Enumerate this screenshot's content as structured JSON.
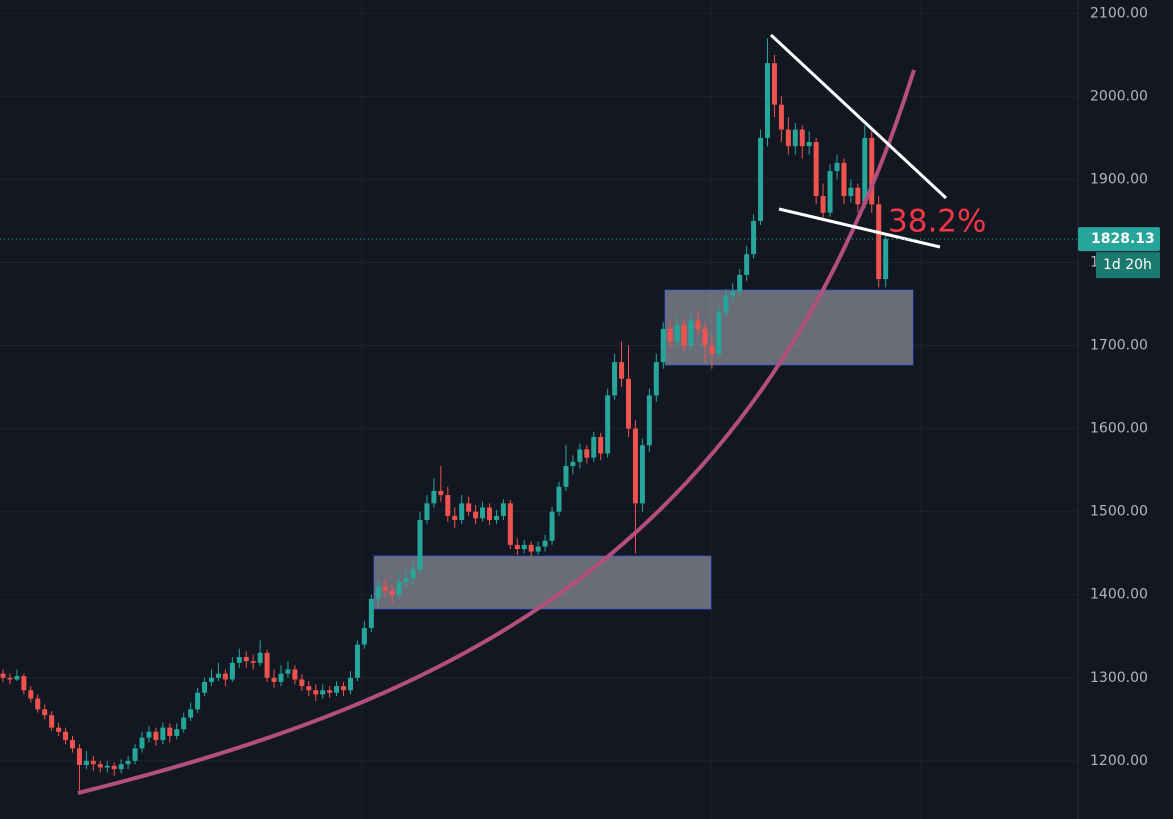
{
  "chart_data": {
    "type": "candlestick",
    "up_color": "#26a69a",
    "down_color": "#ef5350",
    "ylim": [
      1130,
      2116
    ],
    "yticks": [
      {
        "value": 1200,
        "label": "1200.00"
      },
      {
        "value": 1300,
        "label": "1300.00"
      },
      {
        "value": 1400,
        "label": "1400.00"
      },
      {
        "value": 1500,
        "label": "1500.00"
      },
      {
        "value": 1600,
        "label": "1600.00"
      },
      {
        "value": 1700,
        "label": "1700.00"
      },
      {
        "value": 1800,
        "label": "1800.00"
      },
      {
        "value": 1900,
        "label": "1900.00"
      },
      {
        "value": 2000,
        "label": "2000.00"
      },
      {
        "value": 2100,
        "label": "2100.00"
      }
    ],
    "grid": true,
    "last_price": 1828.13,
    "countdown": "1d 20h",
    "annotation": "38.2%",
    "candles": [
      [
        1305,
        1310,
        1295,
        1300
      ],
      [
        1300,
        1305,
        1292,
        1298
      ],
      [
        1298,
        1310,
        1296,
        1302
      ],
      [
        1302,
        1305,
        1280,
        1285
      ],
      [
        1285,
        1290,
        1270,
        1275
      ],
      [
        1275,
        1280,
        1258,
        1262
      ],
      [
        1262,
        1268,
        1250,
        1255
      ],
      [
        1255,
        1260,
        1236,
        1240
      ],
      [
        1240,
        1246,
        1230,
        1235
      ],
      [
        1235,
        1240,
        1220,
        1225
      ],
      [
        1225,
        1230,
        1210,
        1215
      ],
      [
        1215,
        1220,
        1165,
        1195
      ],
      [
        1195,
        1212,
        1190,
        1200
      ],
      [
        1200,
        1206,
        1188,
        1196
      ],
      [
        1196,
        1200,
        1186,
        1192
      ],
      [
        1192,
        1200,
        1186,
        1194
      ],
      [
        1194,
        1198,
        1182,
        1190
      ],
      [
        1190,
        1202,
        1185,
        1196
      ],
      [
        1196,
        1206,
        1190,
        1200
      ],
      [
        1200,
        1220,
        1196,
        1215
      ],
      [
        1215,
        1235,
        1210,
        1228
      ],
      [
        1228,
        1242,
        1222,
        1235
      ],
      [
        1235,
        1240,
        1218,
        1225
      ],
      [
        1225,
        1246,
        1220,
        1240
      ],
      [
        1240,
        1245,
        1222,
        1230
      ],
      [
        1230,
        1245,
        1226,
        1238
      ],
      [
        1238,
        1258,
        1234,
        1252
      ],
      [
        1252,
        1270,
        1248,
        1262
      ],
      [
        1262,
        1288,
        1258,
        1282
      ],
      [
        1282,
        1300,
        1278,
        1295
      ],
      [
        1295,
        1310,
        1290,
        1300
      ],
      [
        1300,
        1318,
        1296,
        1305
      ],
      [
        1305,
        1310,
        1290,
        1298
      ],
      [
        1298,
        1325,
        1295,
        1318
      ],
      [
        1318,
        1335,
        1312,
        1325
      ],
      [
        1325,
        1332,
        1312,
        1320
      ],
      [
        1320,
        1328,
        1310,
        1318
      ],
      [
        1318,
        1345,
        1314,
        1330
      ],
      [
        1330,
        1334,
        1295,
        1300
      ],
      [
        1300,
        1310,
        1288,
        1295
      ],
      [
        1295,
        1315,
        1290,
        1305
      ],
      [
        1305,
        1320,
        1300,
        1310
      ],
      [
        1310,
        1315,
        1292,
        1298
      ],
      [
        1298,
        1304,
        1284,
        1290
      ],
      [
        1290,
        1296,
        1278,
        1285
      ],
      [
        1285,
        1292,
        1272,
        1280
      ],
      [
        1280,
        1292,
        1275,
        1285
      ],
      [
        1285,
        1290,
        1276,
        1282
      ],
      [
        1282,
        1296,
        1278,
        1290
      ],
      [
        1290,
        1295,
        1278,
        1285
      ],
      [
        1285,
        1308,
        1280,
        1300
      ],
      [
        1300,
        1345,
        1296,
        1340
      ],
      [
        1340,
        1368,
        1335,
        1360
      ],
      [
        1360,
        1400,
        1355,
        1395
      ],
      [
        1395,
        1418,
        1385,
        1410
      ],
      [
        1410,
        1420,
        1398,
        1405
      ],
      [
        1405,
        1412,
        1390,
        1400
      ],
      [
        1400,
        1425,
        1396,
        1415
      ],
      [
        1415,
        1430,
        1408,
        1420
      ],
      [
        1420,
        1440,
        1412,
        1430
      ],
      [
        1430,
        1500,
        1425,
        1490
      ],
      [
        1490,
        1520,
        1485,
        1510
      ],
      [
        1510,
        1540,
        1505,
        1525
      ],
      [
        1525,
        1555,
        1512,
        1520
      ],
      [
        1520,
        1530,
        1488,
        1495
      ],
      [
        1495,
        1505,
        1480,
        1490
      ],
      [
        1490,
        1520,
        1485,
        1510
      ],
      [
        1510,
        1518,
        1495,
        1500
      ],
      [
        1500,
        1508,
        1485,
        1492
      ],
      [
        1492,
        1512,
        1488,
        1505
      ],
      [
        1505,
        1510,
        1484,
        1490
      ],
      [
        1490,
        1502,
        1485,
        1495
      ],
      [
        1495,
        1515,
        1490,
        1510
      ],
      [
        1510,
        1514,
        1455,
        1460
      ],
      [
        1460,
        1468,
        1448,
        1455
      ],
      [
        1455,
        1466,
        1450,
        1460
      ],
      [
        1460,
        1464,
        1446,
        1452
      ],
      [
        1452,
        1464,
        1448,
        1458
      ],
      [
        1458,
        1472,
        1452,
        1465
      ],
      [
        1465,
        1506,
        1460,
        1500
      ],
      [
        1500,
        1536,
        1495,
        1530
      ],
      [
        1530,
        1580,
        1525,
        1555
      ],
      [
        1555,
        1568,
        1545,
        1560
      ],
      [
        1560,
        1582,
        1552,
        1575
      ],
      [
        1575,
        1580,
        1558,
        1565
      ],
      [
        1565,
        1596,
        1560,
        1590
      ],
      [
        1590,
        1595,
        1562,
        1570
      ],
      [
        1570,
        1648,
        1565,
        1640
      ],
      [
        1640,
        1690,
        1635,
        1680
      ],
      [
        1680,
        1705,
        1650,
        1660
      ],
      [
        1660,
        1700,
        1590,
        1600
      ],
      [
        1600,
        1610,
        1450,
        1510
      ],
      [
        1510,
        1588,
        1500,
        1580
      ],
      [
        1580,
        1648,
        1572,
        1640
      ],
      [
        1640,
        1690,
        1632,
        1680
      ],
      [
        1680,
        1728,
        1672,
        1720
      ],
      [
        1720,
        1730,
        1695,
        1705
      ],
      [
        1705,
        1735,
        1698,
        1725
      ],
      [
        1725,
        1732,
        1692,
        1700
      ],
      [
        1700,
        1738,
        1694,
        1730
      ],
      [
        1730,
        1742,
        1712,
        1720
      ],
      [
        1720,
        1728,
        1680,
        1700
      ],
      [
        1700,
        1712,
        1672,
        1690
      ],
      [
        1690,
        1748,
        1686,
        1740
      ],
      [
        1740,
        1768,
        1735,
        1760
      ],
      [
        1760,
        1775,
        1752,
        1765
      ],
      [
        1765,
        1792,
        1760,
        1785
      ],
      [
        1785,
        1820,
        1778,
        1810
      ],
      [
        1810,
        1858,
        1805,
        1850
      ],
      [
        1850,
        1960,
        1845,
        1950
      ],
      [
        1950,
        2070,
        1940,
        2040
      ],
      [
        2040,
        2050,
        1975,
        1990
      ],
      [
        1990,
        2000,
        1945,
        1960
      ],
      [
        1960,
        1975,
        1930,
        1940
      ],
      [
        1940,
        1968,
        1930,
        1960
      ],
      [
        1960,
        1965,
        1925,
        1940
      ],
      [
        1940,
        1958,
        1930,
        1945
      ],
      [
        1945,
        1950,
        1870,
        1880
      ],
      [
        1880,
        1895,
        1850,
        1860
      ],
      [
        1860,
        1918,
        1855,
        1910
      ],
      [
        1910,
        1930,
        1900,
        1920
      ],
      [
        1920,
        1925,
        1870,
        1880
      ],
      [
        1880,
        1900,
        1872,
        1890
      ],
      [
        1890,
        1895,
        1860,
        1870
      ],
      [
        1870,
        1965,
        1865,
        1950
      ],
      [
        1950,
        1958,
        1860,
        1870
      ],
      [
        1870,
        1880,
        1770,
        1780
      ],
      [
        1780,
        1835,
        1770,
        1828
      ]
    ]
  }
}
